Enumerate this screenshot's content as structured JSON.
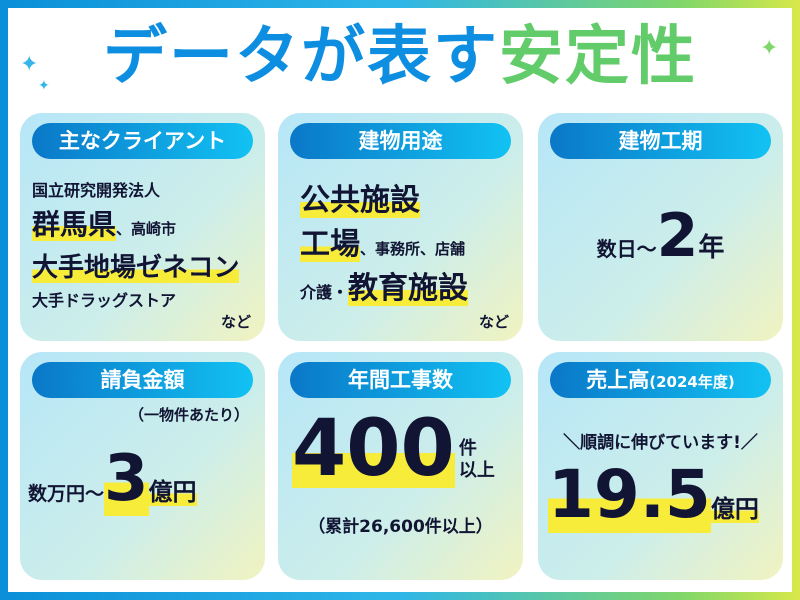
{
  "title": {
    "part1": "データ",
    "part2": "が表す",
    "part3": "安定性"
  },
  "cards": [
    {
      "header": "主なクライアント",
      "lines": [
        "国立研究開発法人",
        "群馬県",
        "、高崎市",
        "大手地場ゼネコン",
        "大手ドラッグストア"
      ],
      "suffix": "など"
    },
    {
      "header": "建物用途",
      "lines": [
        "公共施設",
        "工場",
        "、事務所、店舗",
        "介護・",
        "教育施設"
      ],
      "suffix": "など"
    },
    {
      "header": "建物工期",
      "prefix": "数日〜",
      "value": "2",
      "unit": "年"
    },
    {
      "header": "請負金額",
      "note": "（一物件あたり）",
      "prefix": "数万円〜",
      "value": "3",
      "unit": "億円"
    },
    {
      "header": "年間工事数",
      "value": "400",
      "unit1": "件",
      "unit2": "以上",
      "note": "（累計26,600件以上）"
    },
    {
      "header": "売上高",
      "header_sub": "(2024年度)",
      "tagline": "順調に伸びています!",
      "value": "19.5",
      "unit": "億円"
    }
  ],
  "colors": {
    "accent_blue": "#0a8fd8",
    "accent_green": "#62cc6a",
    "highlight": "#f7ec3a",
    "text": "#111533"
  },
  "icons": [
    "sparkle-icon"
  ]
}
